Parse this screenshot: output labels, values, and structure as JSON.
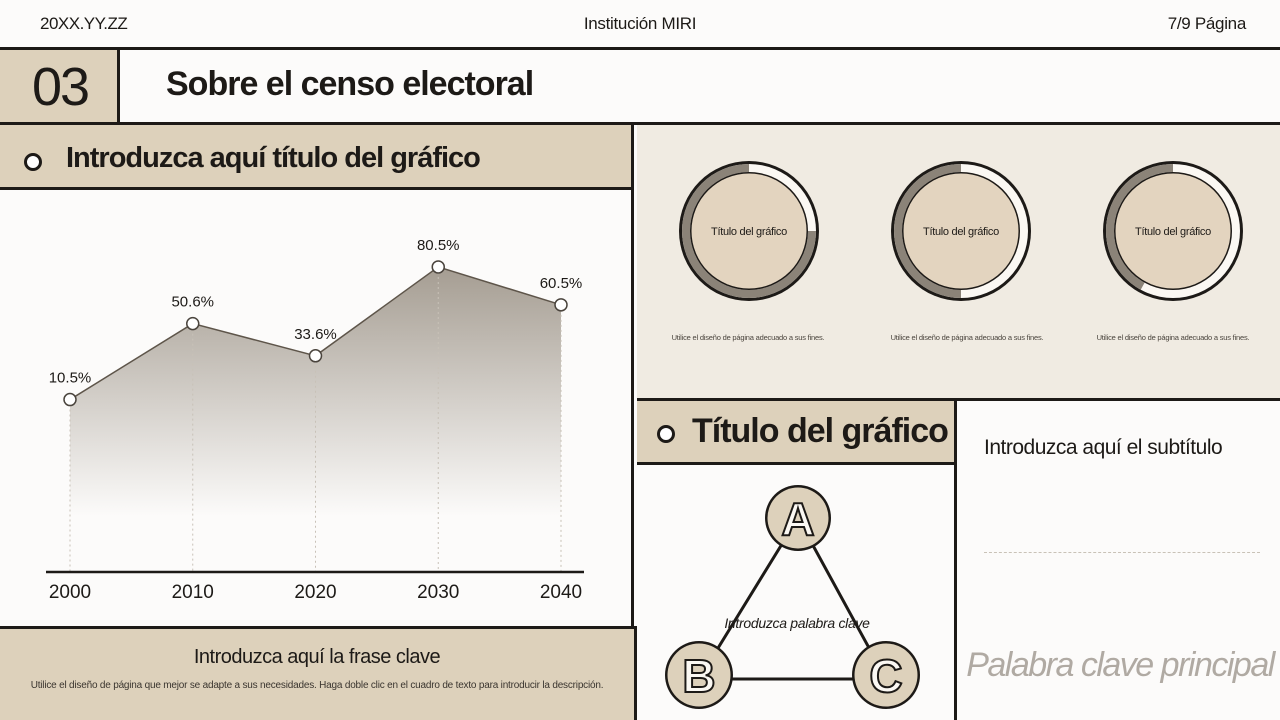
{
  "header": {
    "date": "20XX.YY.ZZ",
    "institution": "Institución MIRI",
    "page": "7/9 Página"
  },
  "section": {
    "number": "03",
    "title": "Sobre el censo electoral"
  },
  "left_panel": {
    "title": "Introduzca aquí título del gráfico",
    "footer_key_phrase": "Introduzca aquí la frase clave",
    "footer_description": "Utilice el diseño de página que mejor se adapte a sus necesidades. Haga doble clic en el cuadro de texto para introducir la descripción."
  },
  "chart_data": {
    "type": "area",
    "categories": [
      "2000",
      "2010",
      "2020",
      "2030",
      "2040"
    ],
    "values": [
      10.5,
      50.6,
      33.6,
      80.5,
      60.5
    ],
    "value_labels": [
      "10.5%",
      "50.6%",
      "33.6%",
      "80.5%",
      "60.5%"
    ],
    "ylim": [
      -80,
      100
    ],
    "grid": false,
    "colors": {
      "line": "#5e554a",
      "fill_top": "#a59d92",
      "fill_bottom": "#fcfbfa"
    }
  },
  "donuts": [
    {
      "label": "Título del gráfico",
      "description": "Utilice el diseño de página adecuado a sus fines.",
      "value": 0.75
    },
    {
      "label": "Título del gráfico",
      "description": "Utilice el diseño de página adecuado a sus fines.",
      "value": 0.5
    },
    {
      "label": "Título del gráfico",
      "description": "Utilice el diseño de página adecuado a sus fines.",
      "value": 0.42
    }
  ],
  "triangle_panel": {
    "title": "Título del gráfico",
    "nodes": [
      "A",
      "B",
      "C"
    ],
    "keyword": "Introduzca palabra clave"
  },
  "text_panel": {
    "subtitle": "Introduzca aquí el subtítulo",
    "main_keyword": "Palabra clave principal"
  },
  "colors": {
    "beige": "#ddd1bb",
    "light_beige": "#f0ebe2",
    "dark": "#1d1a17",
    "donut_track": "#fbf8f3",
    "donut_fill": "#8b8378",
    "donut_center": "#e3d4bf"
  }
}
